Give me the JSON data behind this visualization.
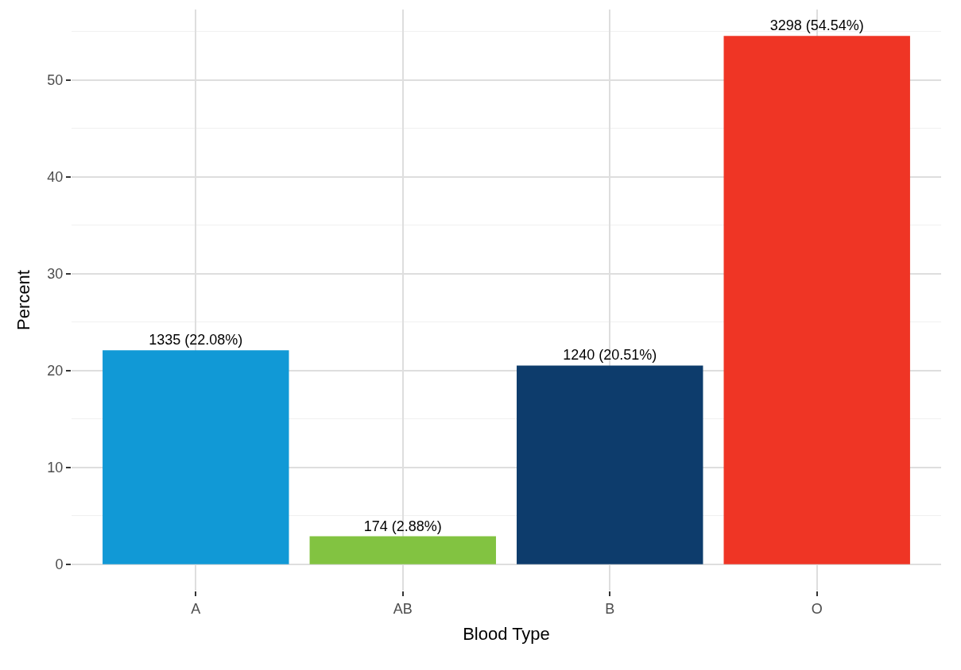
{
  "chart_data": {
    "type": "bar",
    "xlabel": "Blood Type",
    "ylabel": "Percent",
    "categories": [
      "A",
      "AB",
      "B",
      "O"
    ],
    "values": [
      22.08,
      2.88,
      20.51,
      54.54
    ],
    "colors": [
      "#1199d6",
      "#82c341",
      "#0d3c6c",
      "#ef3525"
    ],
    "value_labels": [
      "1335 (22.08%)",
      "174 (2.88%)",
      "1240 (20.51%)",
      "3298 (54.54%)"
    ],
    "ylim": [
      -2.727,
      57.27
    ],
    "yticks": [
      0,
      10,
      20,
      30,
      40,
      50
    ],
    "grid": true,
    "legend": false
  }
}
